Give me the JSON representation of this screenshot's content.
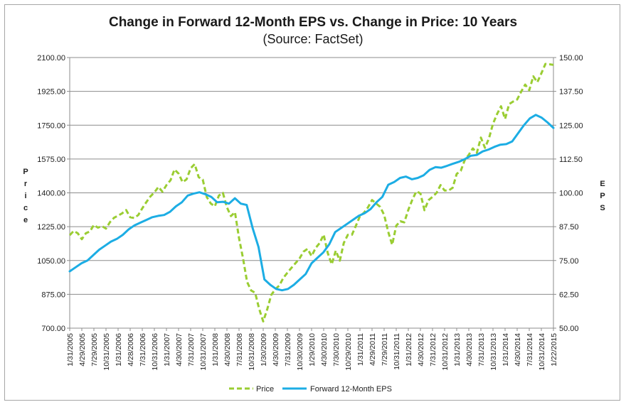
{
  "chart_data": {
    "type": "line",
    "title": "Change in Forward 12-Month EPS vs. Change in Price: 10 Years",
    "subtitle": "(Source: FactSet)",
    "ylabel_left": "Price",
    "ylabel_right": "EPS",
    "ylim_left": [
      700,
      2100
    ],
    "ylim_right": [
      50,
      150
    ],
    "yticks_left": [
      "700.00",
      "875.00",
      "1050.00",
      "1225.00",
      "1400.00",
      "1575.00",
      "1750.00",
      "1925.00",
      "2100.00"
    ],
    "yticks_right": [
      "50.00",
      "62.50",
      "75.00",
      "87.50",
      "100.00",
      "112.50",
      "125.00",
      "137.50",
      "150.00"
    ],
    "xticks": [
      "1/31/2005",
      "4/29/2005",
      "7/29/2005",
      "10/31/2005",
      "1/31/2006",
      "4/28/2006",
      "7/31/2006",
      "10/31/2006",
      "1/31/2007",
      "4/30/2007",
      "7/31/2007",
      "10/31/2007",
      "1/31/2008",
      "4/30/2008",
      "7/31/2008",
      "10/31/2008",
      "1/30/2009",
      "4/30/2009",
      "7/31/2009",
      "10/30/2009",
      "1/29/2010",
      "4/30/2010",
      "7/30/2010",
      "10/29/2010",
      "1/31/2011",
      "4/29/2011",
      "7/29/2011",
      "10/31/2011",
      "1/31/2012",
      "4/30/2012",
      "7/31/2012",
      "10/31/2012",
      "1/31/2013",
      "4/30/2013",
      "7/31/2013",
      "10/31/2013",
      "1/31/2014",
      "4/30/2014",
      "7/31/2014",
      "10/31/2014",
      "1/22/2015"
    ],
    "series": [
      {
        "name": "Price",
        "axis": "left",
        "color": "#9acd32",
        "style": "dashed",
        "points": [
          [
            0,
            1181
          ],
          [
            0.5,
            1203
          ],
          [
            1,
            1191
          ],
          [
            1.5,
            1160
          ],
          [
            2,
            1191
          ],
          [
            2.5,
            1200
          ],
          [
            3,
            1234
          ],
          [
            3.5,
            1220
          ],
          [
            4,
            1228
          ],
          [
            4.5,
            1215
          ],
          [
            5,
            1249
          ],
          [
            5.5,
            1271
          ],
          [
            6,
            1282
          ],
          [
            6.5,
            1294
          ],
          [
            7,
            1311
          ],
          [
            7.5,
            1274
          ],
          [
            8,
            1270
          ],
          [
            8.5,
            1285
          ],
          [
            9,
            1320
          ],
          [
            9.5,
            1352
          ],
          [
            10,
            1381
          ],
          [
            10.5,
            1402
          ],
          [
            11,
            1431
          ],
          [
            11.5,
            1406
          ],
          [
            12,
            1440
          ],
          [
            12.5,
            1465
          ],
          [
            13,
            1521
          ],
          [
            13.5,
            1500
          ],
          [
            14,
            1455
          ],
          [
            14.5,
            1470
          ],
          [
            15,
            1527
          ],
          [
            15.5,
            1549
          ],
          [
            16,
            1481
          ],
          [
            16.5,
            1469
          ],
          [
            17,
            1378
          ],
          [
            17.5,
            1345
          ],
          [
            18,
            1330
          ],
          [
            18.5,
            1386
          ],
          [
            19,
            1400
          ],
          [
            19.5,
            1325
          ],
          [
            20,
            1280
          ],
          [
            20.5,
            1300
          ],
          [
            21,
            1166
          ],
          [
            21.5,
            1060
          ],
          [
            22,
            940
          ],
          [
            22.5,
            895
          ],
          [
            23,
            883
          ],
          [
            23.5,
            800
          ],
          [
            24,
            735
          ],
          [
            24.5,
            798
          ],
          [
            25,
            872
          ],
          [
            25.5,
            901
          ],
          [
            26,
            921
          ],
          [
            26.5,
            960
          ],
          [
            27,
            987
          ],
          [
            27.5,
            1012
          ],
          [
            28,
            1036
          ],
          [
            28.5,
            1060
          ],
          [
            29,
            1096
          ],
          [
            29.5,
            1110
          ],
          [
            30,
            1073
          ],
          [
            30.5,
            1115
          ],
          [
            31,
            1140
          ],
          [
            31.5,
            1184
          ],
          [
            32,
            1089
          ],
          [
            32.5,
            1030
          ],
          [
            33,
            1101
          ],
          [
            33.5,
            1049
          ],
          [
            34,
            1141
          ],
          [
            34.5,
            1183
          ],
          [
            35,
            1183
          ],
          [
            35.5,
            1230
          ],
          [
            36,
            1280
          ],
          [
            36.5,
            1297
          ],
          [
            37,
            1325
          ],
          [
            37.5,
            1363
          ],
          [
            38,
            1345
          ],
          [
            38.5,
            1328
          ],
          [
            39,
            1286
          ],
          [
            39.5,
            1199
          ],
          [
            40,
            1131
          ],
          [
            40.5,
            1230
          ],
          [
            41,
            1253
          ],
          [
            41.5,
            1247
          ],
          [
            42,
            1312
          ],
          [
            42.5,
            1365
          ],
          [
            43,
            1408
          ],
          [
            43.5,
            1397
          ],
          [
            44,
            1310
          ],
          [
            44.5,
            1362
          ],
          [
            45,
            1379
          ],
          [
            45.5,
            1400
          ],
          [
            46,
            1440
          ],
          [
            46.5,
            1412
          ],
          [
            47,
            1412
          ],
          [
            47.5,
            1426
          ],
          [
            48,
            1498
          ],
          [
            48.5,
            1514
          ],
          [
            49,
            1569
          ],
          [
            49.5,
            1597
          ],
          [
            50,
            1630
          ],
          [
            50.5,
            1606
          ],
          [
            51,
            1686
          ],
          [
            51.5,
            1633
          ],
          [
            52,
            1681
          ],
          [
            52.5,
            1757
          ],
          [
            53,
            1807
          ],
          [
            53.5,
            1848
          ],
          [
            54,
            1782
          ],
          [
            54.5,
            1859
          ],
          [
            55,
            1872
          ],
          [
            55.5,
            1883
          ],
          [
            56,
            1924
          ],
          [
            56.5,
            1960
          ],
          [
            57,
            1931
          ],
          [
            57.5,
            2003
          ],
          [
            58,
            1972
          ],
          [
            58.5,
            2018
          ],
          [
            59,
            2067
          ],
          [
            59.5,
            2065
          ],
          [
            60,
            2062
          ]
        ]
      },
      {
        "name": "Forward 12-Month EPS",
        "axis": "right",
        "color": "#1cade4",
        "style": "solid",
        "points": [
          [
            0,
            71.0
          ],
          [
            1,
            72.5
          ],
          [
            2,
            74.0
          ],
          [
            3,
            75.0
          ],
          [
            4,
            77.0
          ],
          [
            5,
            79.0
          ],
          [
            6,
            80.5
          ],
          [
            7,
            82.0
          ],
          [
            8,
            83.0
          ],
          [
            9,
            84.5
          ],
          [
            10,
            86.5
          ],
          [
            11,
            88.0
          ],
          [
            12,
            89.0
          ],
          [
            13,
            90.0
          ],
          [
            14,
            91.0
          ],
          [
            15,
            91.5
          ],
          [
            16,
            91.8
          ],
          [
            17,
            93.0
          ],
          [
            18,
            95.0
          ],
          [
            19,
            96.5
          ],
          [
            20,
            99.0
          ],
          [
            21,
            99.7
          ],
          [
            22,
            100.2
          ],
          [
            23,
            99.5
          ],
          [
            24,
            98.5
          ],
          [
            25,
            96.5
          ],
          [
            26,
            96.7
          ],
          [
            27,
            96.0
          ],
          [
            28,
            98.0
          ],
          [
            29,
            96.0
          ],
          [
            30,
            95.5
          ],
          [
            31,
            87.0
          ],
          [
            32,
            80.0
          ],
          [
            33,
            68.0
          ],
          [
            34,
            66.0
          ],
          [
            35,
            64.5
          ],
          [
            36,
            64.0
          ],
          [
            37,
            64.5
          ],
          [
            38,
            66.0
          ],
          [
            39,
            68.0
          ],
          [
            40,
            70.0
          ],
          [
            41,
            74.0
          ],
          [
            42,
            76.0
          ],
          [
            43,
            78.0
          ],
          [
            44,
            81.0
          ],
          [
            45,
            85.5
          ],
          [
            46,
            87.0
          ],
          [
            47,
            88.5
          ],
          [
            48,
            90.0
          ],
          [
            49,
            91.5
          ],
          [
            50,
            92.5
          ],
          [
            51,
            94.0
          ],
          [
            52,
            96.5
          ],
          [
            53,
            98.5
          ],
          [
            54,
            103.0
          ],
          [
            55,
            104.0
          ],
          [
            56,
            105.5
          ],
          [
            57,
            106.0
          ],
          [
            58,
            105.0
          ],
          [
            59,
            105.5
          ],
          [
            60,
            106.5
          ],
          [
            61,
            108.5
          ],
          [
            62,
            109.5
          ],
          [
            63,
            109.3
          ],
          [
            64,
            110.0
          ],
          [
            65,
            110.8
          ],
          [
            66,
            111.5
          ],
          [
            67,
            112.5
          ],
          [
            68,
            113.7
          ],
          [
            69,
            114.0
          ],
          [
            70,
            115.3
          ],
          [
            71,
            116.0
          ],
          [
            72,
            117.0
          ],
          [
            73,
            117.8
          ],
          [
            74,
            118.0
          ],
          [
            75,
            119.0
          ],
          [
            76,
            122.0
          ],
          [
            77,
            125.0
          ],
          [
            78,
            127.5
          ],
          [
            79,
            128.8
          ],
          [
            80,
            127.8
          ],
          [
            81,
            126.0
          ],
          [
            82,
            124.0
          ]
        ]
      }
    ],
    "legend": [
      "Price",
      "Forward 12-Month EPS"
    ],
    "legend_position": "bottom",
    "grid": true
  }
}
